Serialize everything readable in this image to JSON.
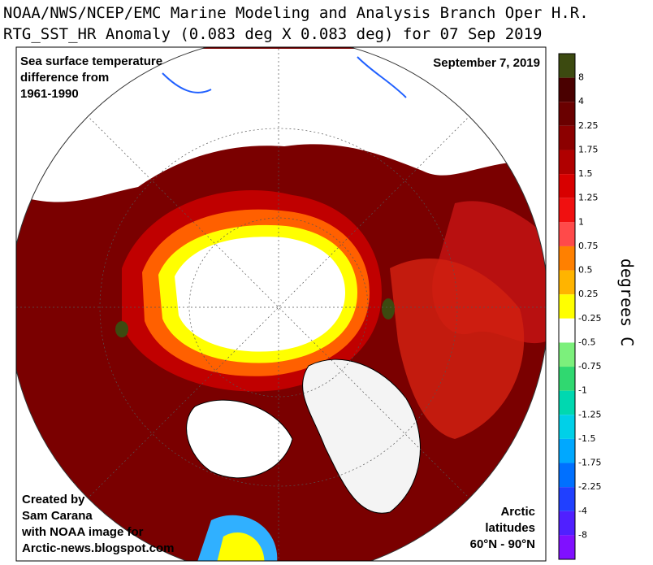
{
  "header": {
    "title_line1": "NOAA/NWS/NCEP/EMC Marine Modeling and Analysis Branch Oper H.R.",
    "title_line2": "RTG_SST_HR Anomaly (0.083 deg X 0.083 deg) for 07 Sep 2019"
  },
  "map": {
    "caption": [
      "Sea surface temperature",
      "difference from",
      "1961-1990"
    ],
    "date": "September 7, 2019",
    "credit": [
      "Created by",
      "Sam Carana",
      "with NOAA image for",
      "Arctic-news.blogspot.com"
    ],
    "region": [
      "Arctic",
      "latitudes",
      "60°N - 90°N"
    ]
  },
  "legend": {
    "unit": "degrees C",
    "labels": [
      8,
      4,
      2.25,
      1.75,
      1.5,
      1.25,
      1,
      0.75,
      0.5,
      0.25,
      -0.25,
      -0.5,
      -0.75,
      -1,
      -1.25,
      -1.5,
      -1.75,
      -2.25,
      -4,
      -8
    ],
    "colors": [
      "#3c4a10",
      "#4a0000",
      "#6a0000",
      "#8c0000",
      "#b00000",
      "#d80000",
      "#f01010",
      "#ff4a4a",
      "#ff8000",
      "#ffb400",
      "#ffff00",
      "#ffffff",
      "#7cf07c",
      "#30d870",
      "#00d8b0",
      "#00d0e8",
      "#00a8ff",
      "#0070ff",
      "#2040ff",
      "#5020ff",
      "#8010ff"
    ]
  }
}
